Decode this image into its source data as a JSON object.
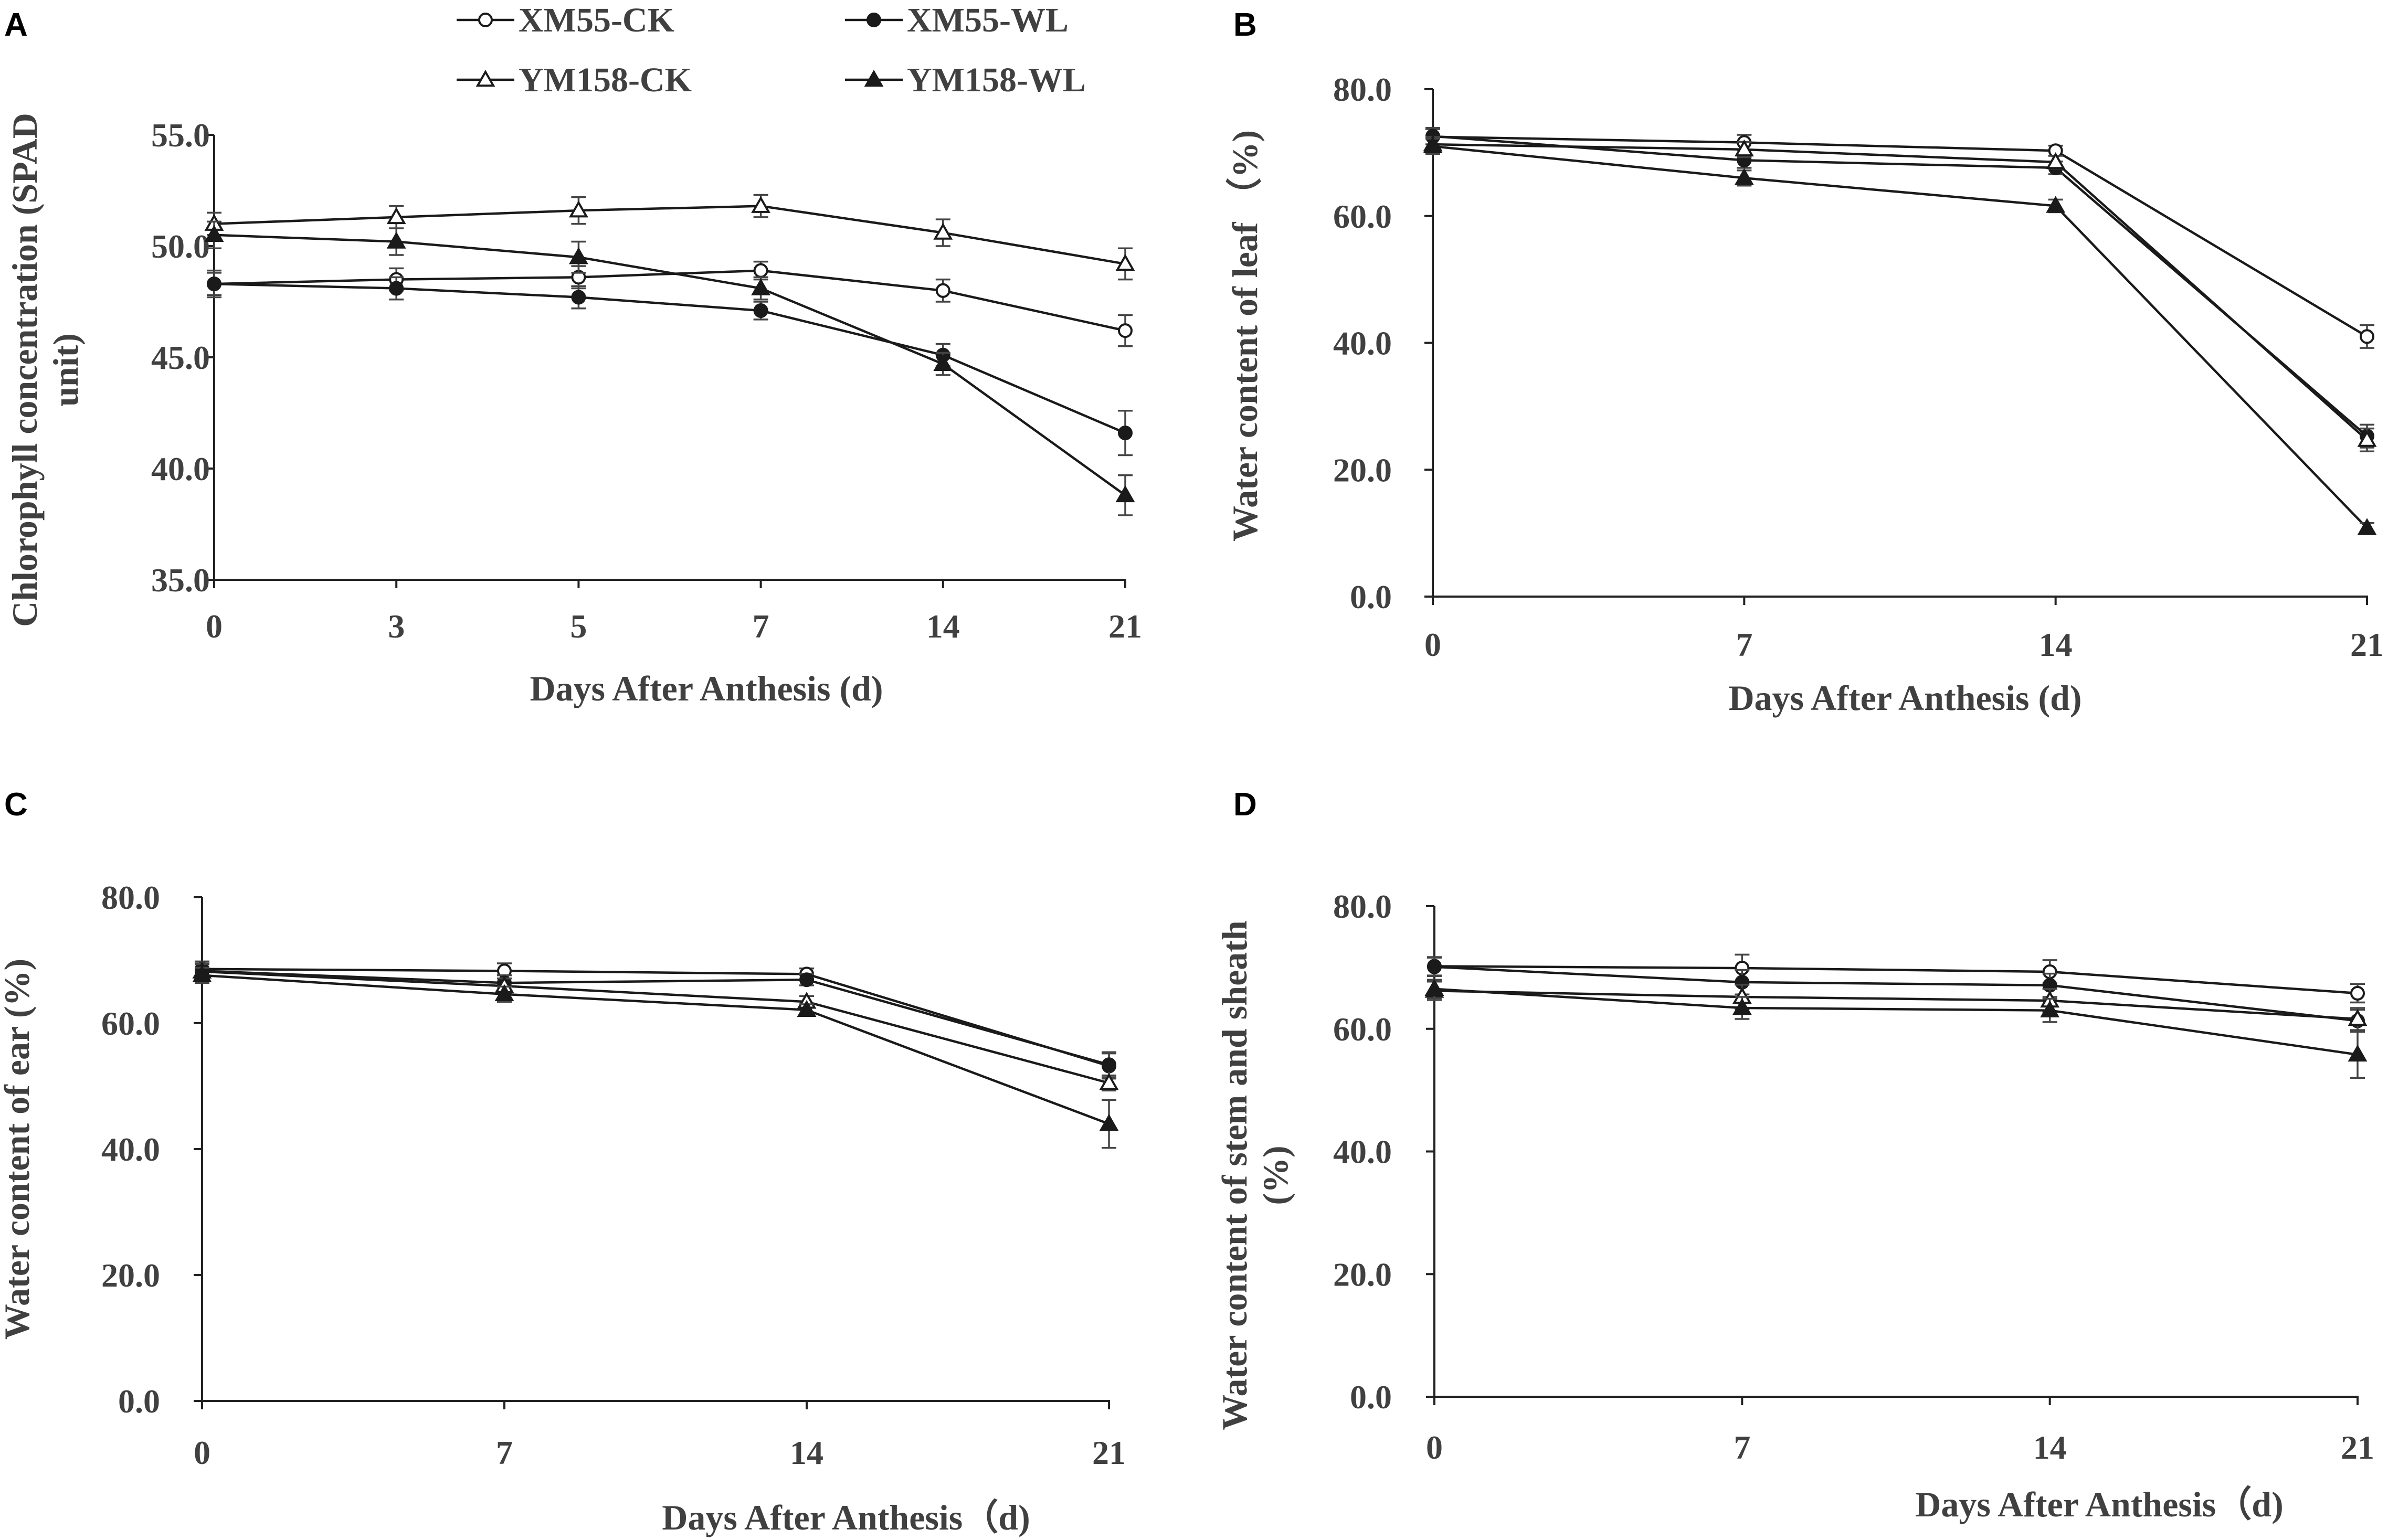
{
  "figure": {
    "legend": [
      {
        "label": "XM55-CK",
        "marker": "open-circle"
      },
      {
        "label": "XM55-WL",
        "marker": "filled-circle"
      },
      {
        "label": "YM158-CK",
        "marker": "open-triangle"
      },
      {
        "label": "YM158-WL",
        "marker": "filled-triangle"
      }
    ],
    "colors": {
      "line": "#1a1a1a",
      "text": "#404040"
    }
  },
  "chart_data": [
    {
      "panel": "A",
      "type": "line",
      "title": "",
      "xlabel": "Days After Anthesis (d)",
      "ylabel_lines": [
        "Chlorophyll concentration (SPAD",
        "unit)"
      ],
      "categories": [
        "0",
        "3",
        "5",
        "7",
        "14",
        "21"
      ],
      "ylim": [
        35.0,
        55.0
      ],
      "yticks": [
        "35.0",
        "40.0",
        "45.0",
        "50.0",
        "55.0"
      ],
      "series": [
        {
          "name": "XM55-CK",
          "values": [
            48.3,
            48.5,
            48.6,
            48.9,
            48.0,
            46.2
          ],
          "errors": [
            0.6,
            0.5,
            0.5,
            0.4,
            0.5,
            0.7
          ]
        },
        {
          "name": "XM55-WL",
          "values": [
            48.3,
            48.1,
            47.7,
            47.1,
            45.1,
            41.6
          ],
          "errors": [
            0.5,
            0.5,
            0.5,
            0.4,
            0.5,
            1.0
          ]
        },
        {
          "name": "YM158-CK",
          "values": [
            51.0,
            51.3,
            51.6,
            51.8,
            50.6,
            49.2
          ],
          "errors": [
            0.5,
            0.5,
            0.6,
            0.5,
            0.6,
            0.7
          ]
        },
        {
          "name": "YM158-WL",
          "values": [
            50.5,
            50.2,
            49.5,
            48.1,
            44.7,
            38.8
          ],
          "errors": [
            0.6,
            0.6,
            0.7,
            0.5,
            0.5,
            0.9
          ]
        }
      ]
    },
    {
      "panel": "B",
      "type": "line",
      "title": "",
      "xlabel": "Days After Anthesis (d)",
      "ylabel_lines": [
        "Water content of leaf （%)"
      ],
      "categories": [
        "0",
        "7",
        "14",
        "21"
      ],
      "ylim": [
        0.0,
        80.0
      ],
      "yticks": [
        "0.0",
        "20.0",
        "40.0",
        "60.0",
        "80.0"
      ],
      "series": [
        {
          "name": "XM55-CK",
          "values": [
            72.5,
            71.6,
            70.3,
            41.0
          ],
          "errors": [
            1.2,
            1.2,
            0.8,
            1.8
          ]
        },
        {
          "name": "XM55-WL",
          "values": [
            72.6,
            68.8,
            67.6,
            25.3
          ],
          "errors": [
            1.3,
            1.2,
            1.0,
            1.8
          ]
        },
        {
          "name": "YM158-CK",
          "values": [
            71.3,
            70.5,
            68.5,
            24.7
          ],
          "errors": [
            1.2,
            1.2,
            1.0,
            1.8
          ]
        },
        {
          "name": "YM158-WL",
          "values": [
            71.0,
            66.0,
            61.6,
            10.8
          ],
          "errors": [
            1.2,
            1.2,
            1.0,
            0.8
          ]
        }
      ]
    },
    {
      "panel": "C",
      "type": "line",
      "title": "",
      "xlabel": "Days After Anthesis（d)",
      "ylabel_lines": [
        "Water content of ear (%)"
      ],
      "categories": [
        "0",
        "7",
        "14",
        "21"
      ],
      "ylim": [
        0.0,
        80.0
      ],
      "yticks": [
        "0.0",
        "20.0",
        "40.0",
        "60.0",
        "80.0"
      ],
      "series": [
        {
          "name": "XM55-CK",
          "values": [
            68.6,
            68.3,
            67.8,
            53.2
          ],
          "errors": [
            1.2,
            1.2,
            0.9,
            2.0
          ]
        },
        {
          "name": "XM55-WL",
          "values": [
            68.3,
            66.4,
            66.9,
            53.4
          ],
          "errors": [
            1.2,
            1.2,
            0.9,
            2.0
          ]
        },
        {
          "name": "YM158-CK",
          "values": [
            68.2,
            65.9,
            63.4,
            50.5
          ],
          "errors": [
            1.2,
            1.2,
            0.9,
            1.2
          ]
        },
        {
          "name": "YM158-WL",
          "values": [
            67.6,
            64.6,
            62.1,
            44.0
          ],
          "errors": [
            1.2,
            1.2,
            0.9,
            3.8
          ]
        }
      ]
    },
    {
      "panel": "D",
      "type": "line",
      "title": "",
      "xlabel": "Days After Anthesis（d)",
      "ylabel_lines": [
        "Water content of stem and sheath",
        "(%)"
      ],
      "categories": [
        "0",
        "7",
        "14",
        "21"
      ],
      "ylim": [
        0.0,
        80.0
      ],
      "yticks": [
        "0.0",
        "20.0",
        "40.0",
        "60.0",
        "80.0"
      ],
      "series": [
        {
          "name": "XM55-CK",
          "values": [
            70.2,
            69.9,
            69.3,
            65.8
          ],
          "errors": [
            1.5,
            2.2,
            1.9,
            1.5
          ]
        },
        {
          "name": "XM55-WL",
          "values": [
            70.1,
            67.6,
            67.1,
            61.3
          ],
          "errors": [
            1.5,
            2.0,
            1.9,
            1.8
          ]
        },
        {
          "name": "YM158-CK",
          "values": [
            66.2,
            65.2,
            64.6,
            61.6
          ],
          "errors": [
            1.5,
            2.0,
            1.9,
            1.8
          ]
        },
        {
          "name": "YM158-WL",
          "values": [
            66.5,
            63.4,
            63.0,
            55.8
          ],
          "errors": [
            1.5,
            1.8,
            1.9,
            3.8
          ]
        }
      ]
    }
  ]
}
